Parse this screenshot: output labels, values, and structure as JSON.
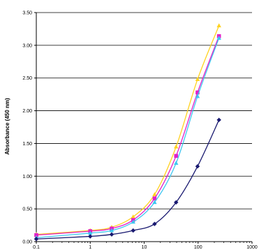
{
  "chart_data": {
    "type": "line",
    "xlabel": "",
    "ylabel": "Absorbance (450 nm)",
    "xscale": "log",
    "xlim": [
      0.1,
      1000
    ],
    "ylim": [
      0,
      3.5
    ],
    "x_ticks": [
      0.1,
      1,
      10,
      100,
      1000
    ],
    "x_tick_labels": [
      "0.1",
      "1",
      "10",
      "100",
      "1000"
    ],
    "y_ticks": [
      0,
      0.5,
      1,
      1.5,
      2,
      2.5,
      3,
      3.5
    ],
    "y_tick_labels": [
      "0.00",
      "0.50",
      "1.00",
      "1.50",
      "2.00",
      "2.50",
      "3.00",
      "3.50"
    ],
    "grid": "horizontal",
    "legend": "none",
    "series": [
      {
        "color": "#ffd21f",
        "marker": "triangle",
        "points": [
          [
            0.1,
            0.11
          ],
          [
            1,
            0.17
          ],
          [
            2.5,
            0.22
          ],
          [
            6.25,
            0.38
          ],
          [
            15.6,
            0.72
          ],
          [
            39.1,
            1.45
          ],
          [
            97.7,
            2.48
          ],
          [
            244,
            3.3
          ]
        ]
      },
      {
        "color": "#e020c8",
        "marker": "square",
        "points": [
          [
            0.1,
            0.1
          ],
          [
            1,
            0.16
          ],
          [
            2.5,
            0.2
          ],
          [
            6.25,
            0.33
          ],
          [
            15.6,
            0.66
          ],
          [
            39.1,
            1.31
          ],
          [
            97.7,
            2.28
          ],
          [
            244,
            3.14
          ]
        ]
      },
      {
        "color": "#3ec7f0",
        "marker": "triangle",
        "points": [
          [
            0.1,
            0.06
          ],
          [
            1,
            0.13
          ],
          [
            2.5,
            0.17
          ],
          [
            6.25,
            0.3
          ],
          [
            15.6,
            0.6
          ],
          [
            39.1,
            1.2
          ],
          [
            97.7,
            2.22
          ],
          [
            244,
            3.11
          ]
        ]
      },
      {
        "color": "#191970",
        "marker": "diamond",
        "points": [
          [
            0.1,
            0.04
          ],
          [
            1,
            0.08
          ],
          [
            2.5,
            0.11
          ],
          [
            6.25,
            0.17
          ],
          [
            15.6,
            0.27
          ],
          [
            39.1,
            0.6
          ],
          [
            97.7,
            1.15
          ],
          [
            244,
            1.86
          ]
        ]
      }
    ]
  }
}
